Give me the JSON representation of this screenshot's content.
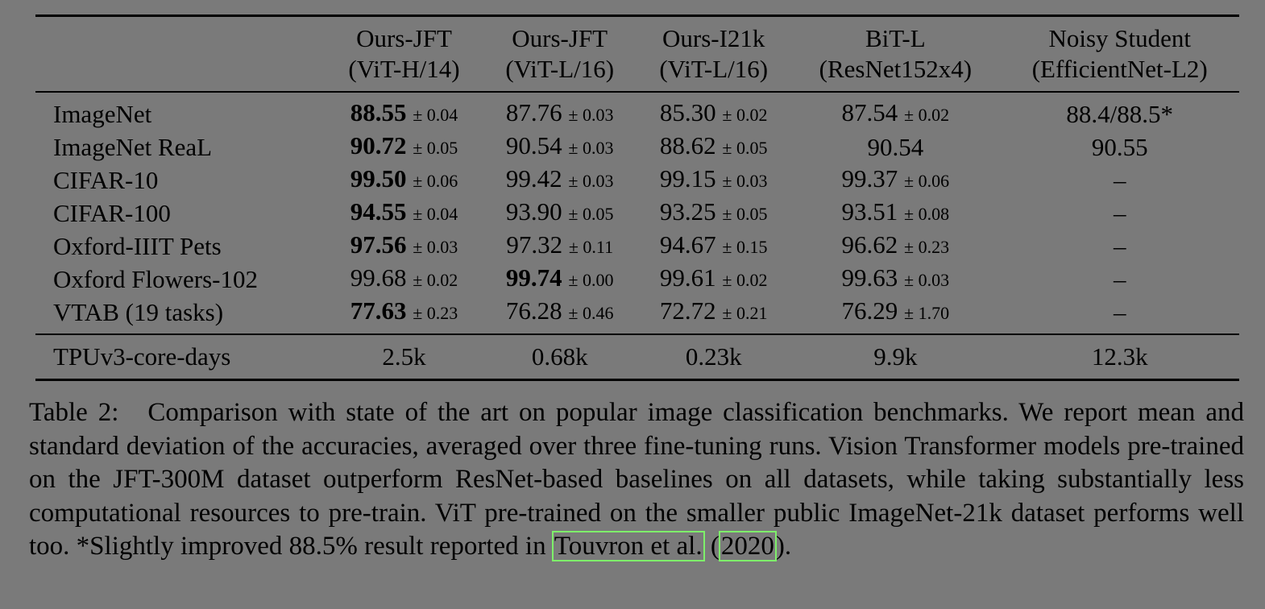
{
  "table": {
    "header": [
      {
        "line1": "",
        "line2": ""
      },
      {
        "line1": "Ours-JFT",
        "line2": "(ViT-H/14)"
      },
      {
        "line1": "Ours-JFT",
        "line2": "(ViT-L/16)"
      },
      {
        "line1": "Ours-I21k",
        "line2": "(ViT-L/16)"
      },
      {
        "line1": "BiT-L",
        "line2": "(ResNet152x4)"
      },
      {
        "line1": "Noisy Student",
        "line2": "(EfficientNet-L2)"
      }
    ],
    "rows": [
      {
        "label": "ImageNet",
        "cells": [
          {
            "v": "88.55",
            "pm": "± 0.04",
            "bold": true
          },
          {
            "v": "87.76",
            "pm": "± 0.03",
            "bold": false
          },
          {
            "v": "85.30",
            "pm": "± 0.02",
            "bold": false
          },
          {
            "v": "87.54",
            "pm": "± 0.02",
            "bold": false
          },
          {
            "v": "88.4/88.5*",
            "pm": "",
            "bold": false
          }
        ]
      },
      {
        "label": "ImageNet ReaL",
        "cells": [
          {
            "v": "90.72",
            "pm": "± 0.05",
            "bold": true
          },
          {
            "v": "90.54",
            "pm": "± 0.03",
            "bold": false
          },
          {
            "v": "88.62",
            "pm": "± 0.05",
            "bold": false
          },
          {
            "v": "90.54",
            "pm": "",
            "bold": false
          },
          {
            "v": "90.55",
            "pm": "",
            "bold": false
          }
        ]
      },
      {
        "label": "CIFAR-10",
        "cells": [
          {
            "v": "99.50",
            "pm": "± 0.06",
            "bold": true
          },
          {
            "v": "99.42",
            "pm": "± 0.03",
            "bold": false
          },
          {
            "v": "99.15",
            "pm": "± 0.03",
            "bold": false
          },
          {
            "v": "99.37",
            "pm": "± 0.06",
            "bold": false
          },
          {
            "v": "–",
            "pm": "",
            "bold": false
          }
        ]
      },
      {
        "label": "CIFAR-100",
        "cells": [
          {
            "v": "94.55",
            "pm": "± 0.04",
            "bold": true
          },
          {
            "v": "93.90",
            "pm": "± 0.05",
            "bold": false
          },
          {
            "v": "93.25",
            "pm": "± 0.05",
            "bold": false
          },
          {
            "v": "93.51",
            "pm": "± 0.08",
            "bold": false
          },
          {
            "v": "–",
            "pm": "",
            "bold": false
          }
        ]
      },
      {
        "label": "Oxford-IIIT Pets",
        "cells": [
          {
            "v": "97.56",
            "pm": "± 0.03",
            "bold": true
          },
          {
            "v": "97.32",
            "pm": "± 0.11",
            "bold": false
          },
          {
            "v": "94.67",
            "pm": "± 0.15",
            "bold": false
          },
          {
            "v": "96.62",
            "pm": "± 0.23",
            "bold": false
          },
          {
            "v": "–",
            "pm": "",
            "bold": false
          }
        ]
      },
      {
        "label": "Oxford Flowers-102",
        "cells": [
          {
            "v": "99.68",
            "pm": "± 0.02",
            "bold": false
          },
          {
            "v": "99.74",
            "pm": "± 0.00",
            "bold": true
          },
          {
            "v": "99.61",
            "pm": "± 0.02",
            "bold": false
          },
          {
            "v": "99.63",
            "pm": "± 0.03",
            "bold": false
          },
          {
            "v": "–",
            "pm": "",
            "bold": false
          }
        ]
      },
      {
        "label": "VTAB (19 tasks)",
        "cells": [
          {
            "v": "77.63",
            "pm": "± 0.23",
            "bold": true
          },
          {
            "v": "76.28",
            "pm": "± 0.46",
            "bold": false
          },
          {
            "v": "72.72",
            "pm": "± 0.21",
            "bold": false
          },
          {
            "v": "76.29",
            "pm": "± 1.70",
            "bold": false
          },
          {
            "v": "–",
            "pm": "",
            "bold": false
          }
        ]
      }
    ],
    "footer": {
      "label": "TPUv3-core-days",
      "values": [
        "2.5k",
        "0.68k",
        "0.23k",
        "9.9k",
        "12.3k"
      ]
    }
  },
  "caption": {
    "label": "Table 2:",
    "text": "Comparison with state of the art on popular image classification benchmarks. We report mean and standard deviation of the accuracies, averaged over three fine-tuning runs. Vision Transformer models pre-trained on the JFT-300M dataset outperform ResNet-based baselines on all datasets, while taking substantially less computational resources to pre-train. ViT pre-trained on the smaller public ImageNet-21k dataset performs well too. *Slightly improved 88.5% result reported in",
    "cite_authors": "Touvron et al.",
    "cite_year": "2020",
    "open_paren": " (",
    "close": ")."
  },
  "colors": {
    "background": "#7a7a7a",
    "citation_box": "#7ef06a"
  }
}
